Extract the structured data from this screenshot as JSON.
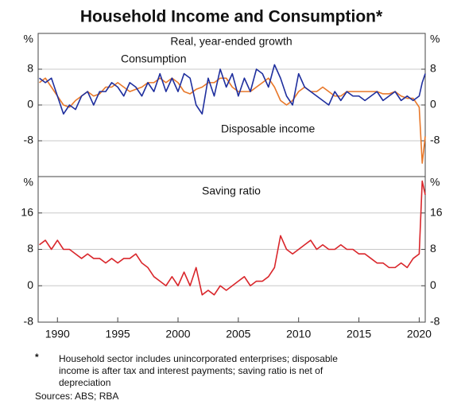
{
  "chart_data": [
    {
      "type": "line",
      "title": "Household Income and Consumption*",
      "subtitle": "Real, year-ended growth",
      "x": [
        1988.5,
        1989,
        1989.5,
        1990,
        1990.5,
        1991,
        1991.5,
        1992,
        1992.5,
        1993,
        1993.5,
        1994,
        1994.5,
        1995,
        1995.5,
        1996,
        1996.5,
        1997,
        1997.5,
        1998,
        1998.5,
        1999,
        1999.5,
        2000,
        2000.5,
        2001,
        2001.5,
        2002,
        2002.5,
        2003,
        2003.5,
        2004,
        2004.5,
        2005,
        2005.5,
        2006,
        2006.5,
        2007,
        2007.5,
        2008,
        2008.5,
        2009,
        2009.5,
        2010,
        2010.5,
        2011,
        2011.5,
        2012,
        2012.5,
        2013,
        2013.5,
        2014,
        2014.5,
        2015,
        2015.5,
        2016,
        2016.5,
        2017,
        2017.5,
        2018,
        2018.5,
        2019,
        2019.5,
        2020,
        2020.25,
        2020.5
      ],
      "series": [
        {
          "name": "Consumption",
          "color": "#e8782a",
          "values": [
            5,
            6,
            4,
            2,
            0,
            -0.5,
            1,
            2,
            3,
            2,
            2.5,
            4,
            4,
            5,
            4,
            3,
            3.5,
            4,
            5,
            5,
            6,
            5,
            6,
            5,
            3,
            2.5,
            3.5,
            4,
            5,
            5,
            6,
            6,
            4,
            3,
            3,
            3,
            4,
            5,
            6,
            4,
            1,
            0,
            1,
            3,
            4,
            3,
            3,
            4,
            3,
            2,
            2,
            3,
            3,
            3,
            3,
            3,
            3,
            2.5,
            2.5,
            3,
            2,
            1.5,
            1.5,
            -0.5,
            -13,
            -7
          ]
        },
        {
          "name": "Disposable income",
          "color": "#1f2f9e",
          "values": [
            6,
            5,
            6,
            2,
            -2,
            0,
            -1,
            2,
            3,
            0,
            3,
            3,
            5,
            4,
            2,
            5,
            4,
            2,
            5,
            3,
            7,
            3,
            6,
            3,
            7,
            6,
            0,
            -2,
            6,
            2,
            8,
            4,
            7,
            2,
            6,
            3,
            8,
            7,
            4,
            9,
            6,
            2,
            0,
            7,
            4,
            3,
            2,
            1,
            0,
            3,
            1,
            3,
            2,
            2,
            1,
            2,
            3,
            1,
            2,
            3,
            1,
            2,
            1,
            2,
            5,
            7
          ]
        }
      ],
      "xlim": [
        1988.4,
        2020.5
      ],
      "ylim": [
        -16,
        16
      ],
      "yticks": [
        {
          "value": 16,
          "label": "%"
        },
        8,
        0,
        -8
      ],
      "grid": true
    },
    {
      "type": "line",
      "x": [
        1988.5,
        1989,
        1989.5,
        1990,
        1990.5,
        1991,
        1991.5,
        1992,
        1992.5,
        1993,
        1993.5,
        1994,
        1994.5,
        1995,
        1995.5,
        1996,
        1996.5,
        1997,
        1997.5,
        1998,
        1998.5,
        1999,
        1999.5,
        2000,
        2000.5,
        2001,
        2001.5,
        2002,
        2002.5,
        2003,
        2003.5,
        2004,
        2004.5,
        2005,
        2005.5,
        2006,
        2006.5,
        2007,
        2007.5,
        2008,
        2008.5,
        2009,
        2009.5,
        2010,
        2010.5,
        2011,
        2011.5,
        2012,
        2012.5,
        2013,
        2013.5,
        2014,
        2014.5,
        2015,
        2015.5,
        2016,
        2016.5,
        2017,
        2017.5,
        2018,
        2018.5,
        2019,
        2019.5,
        2020,
        2020.25,
        2020.5
      ],
      "series": [
        {
          "name": "Saving ratio",
          "color": "#d9262b",
          "values": [
            9,
            10,
            8,
            10,
            8,
            8,
            7,
            6,
            7,
            6,
            6,
            5,
            6,
            5,
            6,
            6,
            7,
            5,
            4,
            2,
            1,
            0,
            2,
            0,
            3,
            0,
            4,
            -2,
            -1,
            -2,
            0,
            -1,
            0,
            1,
            2,
            0,
            1,
            1,
            2,
            4,
            11,
            8,
            7,
            8,
            9,
            10,
            8,
            9,
            8,
            8,
            9,
            8,
            8,
            7,
            7,
            6,
            5,
            5,
            4,
            4,
            5,
            4,
            6,
            7,
            23,
            20
          ]
        }
      ],
      "xlim": [
        1988.4,
        2020.5
      ],
      "ylim": [
        -8,
        24
      ],
      "xticks": [
        1990,
        1995,
        2000,
        2005,
        2010,
        2015,
        2020
      ],
      "yticks": [
        {
          "value": 24,
          "label": "%"
        },
        16,
        8,
        0,
        -8
      ],
      "grid": true
    }
  ],
  "notes": {
    "marker": "*",
    "lines": [
      "Household sector includes unincorporated enterprises; disposable",
      "income is after tax and interest payments; saving ratio is net of",
      "depreciation"
    ],
    "source": "Sources: ABS; RBA"
  }
}
